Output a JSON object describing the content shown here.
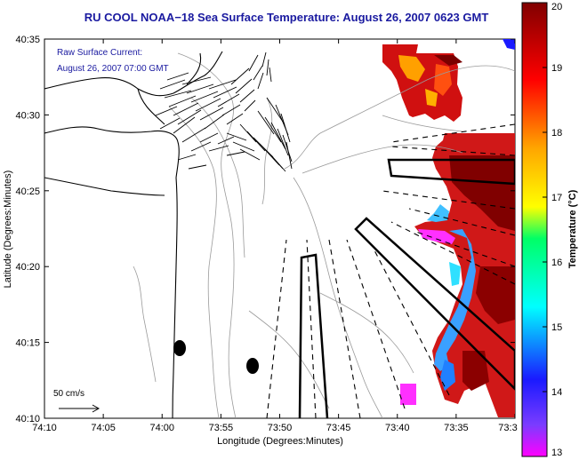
{
  "chart_data": {
    "type": "heatmap",
    "title": "RU COOL  NOAA−18  Sea Surface Temperature:  August 26, 2007 0623 GMT",
    "annotation_lines": [
      "Raw Surface Current:",
      "August 26, 2007 07:00 GMT"
    ],
    "scale_label": "50 cm/s",
    "xlabel": "Longitude (Degrees:Minutes)",
    "ylabel": "Latitude (Degrees:Minutes)",
    "x_ticks": [
      "74:10",
      "74:05",
      "74:00",
      "73:55",
      "73:50",
      "73:45",
      "73:40",
      "73:35",
      "73:3"
    ],
    "y_ticks": [
      "40:35",
      "40:30",
      "40:25",
      "40:20",
      "40:15",
      "40:10"
    ],
    "xlim_minutes_west": [
      70,
      30
    ],
    "ylim_minutes_north": [
      10,
      35
    ],
    "colorbar": {
      "label": "Temperature (°C)",
      "range": [
        13,
        20
      ],
      "ticks": [
        "20",
        "19",
        "18",
        "17",
        "16",
        "15",
        "14",
        "13"
      ]
    },
    "colors": {
      "title_text": "#1a1aa0",
      "coast": "#000000",
      "contours": "#999999",
      "vectors": "#000000",
      "warm": "#8b0000",
      "cool": "#0080ff"
    }
  }
}
